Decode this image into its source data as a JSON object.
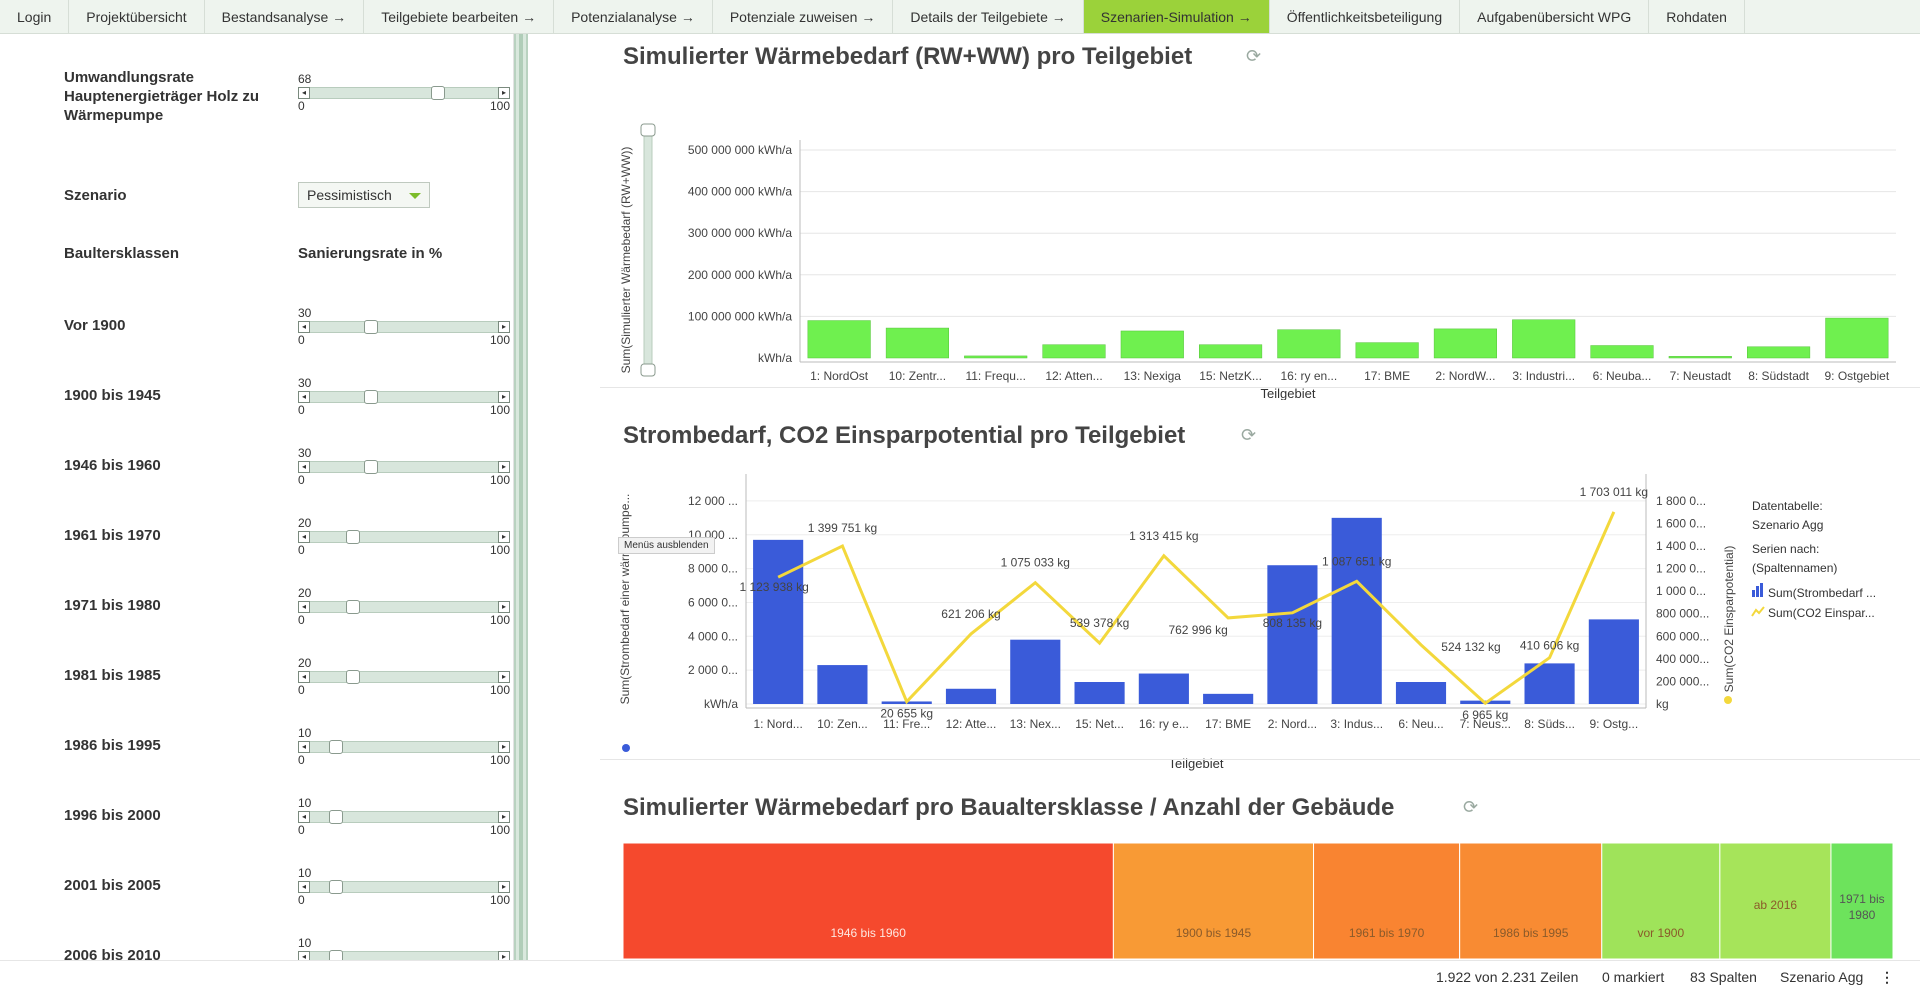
{
  "nav": {
    "tabs": [
      {
        "label": "Login",
        "active": false
      },
      {
        "label": "Projektübersicht",
        "active": false
      },
      {
        "label": "Bestandsanalyse →",
        "active": false
      },
      {
        "label": "Teilgebiete bearbeiten →",
        "active": false
      },
      {
        "label": "Potenzialanalyse →",
        "active": false
      },
      {
        "label": "Potenziale zuweisen →",
        "active": false
      },
      {
        "label": "Details der Teilgebiete →",
        "active": false
      },
      {
        "label": "Szenarien-Simulation →",
        "active": true
      },
      {
        "label": "Öffentlichkeitsbeteiligung",
        "active": false
      },
      {
        "label": "Aufgabenübersicht WPG",
        "active": false
      },
      {
        "label": "Rohdaten",
        "active": false
      }
    ]
  },
  "left": {
    "conversion_label": "Umwandlungsrate Hauptenergieträger Holz zu Wärmepumpe",
    "conversion_slider": {
      "value": "68",
      "min": "0",
      "max": "100",
      "fraction": 0.68
    },
    "scenario_label": "Szenario",
    "scenario_value": "Pessimistisch",
    "header_classes": "Baultersklassen",
    "header_rate": "Sanierungsrate in %",
    "rows": [
      {
        "label": "Vor 1900",
        "value": "30",
        "min": "0",
        "max": "100",
        "fraction": 0.3
      },
      {
        "label": "1900 bis 1945",
        "value": "30",
        "min": "0",
        "max": "100",
        "fraction": 0.3
      },
      {
        "label": "1946 bis 1960",
        "value": "30",
        "min": "0",
        "max": "100",
        "fraction": 0.3
      },
      {
        "label": "1961 bis 1970",
        "value": "20",
        "min": "0",
        "max": "100",
        "fraction": 0.2
      },
      {
        "label": "1971 bis 1980",
        "value": "20",
        "min": "0",
        "max": "100",
        "fraction": 0.2
      },
      {
        "label": "1981 bis 1985",
        "value": "20",
        "min": "0",
        "max": "100",
        "fraction": 0.2
      },
      {
        "label": "1986 bis 1995",
        "value": "10",
        "min": "0",
        "max": "100",
        "fraction": 0.1
      },
      {
        "label": "1996 bis 2000",
        "value": "10",
        "min": "0",
        "max": "100",
        "fraction": 0.1
      },
      {
        "label": "2001 bis 2005",
        "value": "10",
        "min": "0",
        "max": "100",
        "fraction": 0.1
      },
      {
        "label": "2006 bis 2010",
        "value": "10",
        "min": "0",
        "max": "100",
        "fraction": 0.1
      }
    ]
  },
  "charts": {
    "chart1_title": "Simulierter Wärmebedarf (RW+WW) pro Teilgebiet",
    "chart2_title": "Strombedarf, CO2 Einsparpotential pro Teilgebiet",
    "chart3_title": "Simulierter Wärmebedarf pro Baualtersklasse / Anzahl der Gebäude",
    "tooltip": "Menüs ausblenden",
    "legend_title": "Datentabelle:",
    "legend_table": "Szenario Agg",
    "legend_series_by": "Serien nach:",
    "legend_series_sub": "(Spaltennamen)",
    "legend_items": [
      "Sum(Strombedarf ...",
      "Sum(CO2 Einspar..."
    ],
    "colors": {
      "bar_green": "#6ff04f",
      "bar_blue": "#3a5bd9",
      "line_yellow": "#f3d83c"
    }
  },
  "chart_data": [
    {
      "type": "bar",
      "title": "Simulierter Wärmebedarf (RW+WW) pro Teilgebiet",
      "xlabel": "Teilgebiet",
      "ylabel": "Sum(Simulierter Wärmebedarf (RW+WW))",
      "ylim": [
        0,
        500000000
      ],
      "yticks": [
        "kWh/a",
        "100 000 000 kWh/a",
        "200 000 000 kWh/a",
        "300 000 000 kWh/a",
        "400 000 000 kWh/a",
        "500 000 000 kWh/a"
      ],
      "categories": [
        "1: NordOst",
        "10: Zentr...",
        "11: Frequ...",
        "12: Atten...",
        "13: Nexiga",
        "15: NetzK...",
        "16: ry en...",
        "17: BME",
        "2: NordW...",
        "3: Industri...",
        "6: Neuba...",
        "7: Neustadt",
        "8: Südstadt",
        "9: Ostgebiet"
      ],
      "values": [
        90000000,
        72000000,
        5000000,
        32000000,
        65000000,
        32000000,
        68000000,
        37000000,
        70000000,
        92000000,
        30000000,
        4000000,
        27000000,
        96000000
      ],
      "grid": true
    },
    {
      "type": "bar",
      "title": "Strombedarf, CO2 Einsparpotential pro Teilgebiet",
      "xlabel": "Teilgebiet",
      "ylabel": "Sum(Strombedarf einer wärmepumpe...",
      "y2label": "Sum(CO2 Einsparpotential)",
      "ylim": [
        0,
        13000
      ],
      "y2lim": [
        0,
        1950000
      ],
      "yticks": [
        "kWh/a",
        "2 000 0...",
        "4 000 0...",
        "6 000 0...",
        "8 000 0...",
        "10 000 ...",
        "12 000 ..."
      ],
      "y2ticks": [
        "kg",
        "200 000...",
        "400 000...",
        "600 000...",
        "800 000...",
        "1 000 0...",
        "1 200 0...",
        "1 400 0...",
        "1 600 0...",
        "1 800 0..."
      ],
      "categories": [
        "1: Nord...",
        "10: Zen...",
        "11: Fre...",
        "12: Atte...",
        "13: Nex...",
        "15: Net...",
        "16: ry e...",
        "17: BME",
        "2: Nord...",
        "3: Indus...",
        "6: Neu...",
        "7: Neus...",
        "8: Süds...",
        "9: Ostg..."
      ],
      "series": [
        {
          "name": "Sum(Strombedarf ...",
          "type": "bar",
          "values": [
            9700,
            2300,
            150,
            900,
            3800,
            1300,
            1800,
            600,
            8200,
            11000,
            1300,
            200,
            2400,
            5000
          ]
        },
        {
          "name": "Sum(CO2 Einspar...",
          "type": "line",
          "values": [
            1123938,
            1399751,
            20655,
            621206,
            1075033,
            539378,
            1313415,
            762996,
            808135,
            1087651,
            524132,
            6965,
            410606,
            1703011
          ],
          "labels": [
            "1 123 938 kg",
            "1 399 751 kg",
            "20 655 kg",
            "621 206 kg",
            "1 075 033 kg",
            "539 378 kg",
            "1 313 415 kg",
            "762 996 kg",
            "808 135 kg",
            "1 087 651 kg",
            "524 132 kg",
            "6 965 kg",
            "410 606 kg",
            "1 703 011 kg"
          ]
        }
      ],
      "grid": true,
      "legend": "right"
    },
    {
      "type": "heatmap",
      "title": "Simulierter Wärmebedarf pro Baualtersklasse / Anzahl der Gebäude",
      "categories": [
        "1946 bis 1960",
        "1900 bis 1945",
        "1961 bis 1970",
        "1986 bis 1995",
        "vor 1900",
        "ab 2016",
        "1971 bis 1980"
      ],
      "values": [
        490,
        200,
        146,
        142,
        118,
        111,
        62
      ],
      "colors": [
        "#f5492d",
        "#f89a35",
        "#f98431",
        "#f88b33",
        "#9fe35a",
        "#a6e45a",
        "#6de35c"
      ]
    }
  ],
  "status": {
    "rows": "1.922 von 2.231 Zeilen",
    "marked": "0 markiert",
    "columns": "83 Spalten",
    "table": "Szenario Agg",
    "menu_icon": "more-vertical-icon"
  }
}
